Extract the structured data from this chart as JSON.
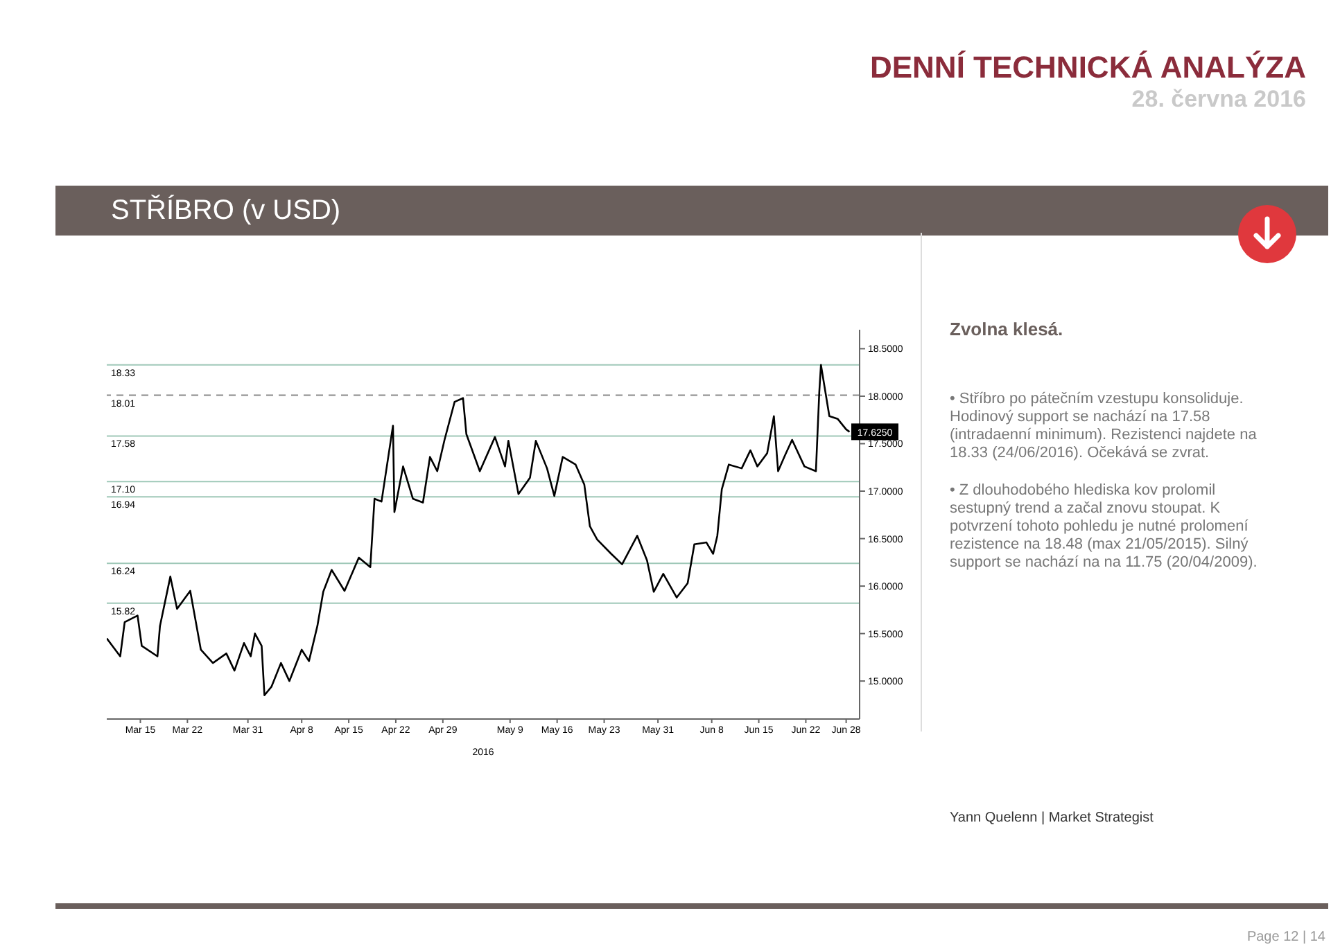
{
  "chart_data": {
    "type": "line",
    "title": "STŘÍBRO (v USD)",
    "subtitle": "Zvolna klesá.",
    "xlabel": "2016",
    "legend": false,
    "grid": false,
    "marker": "none",
    "line_style": "solid",
    "series": [
      {
        "color": "#000000",
        "x": [
          "2016-03-10T00:00",
          "2016-03-12T00:00",
          "2016-03-12T16:00",
          "2016-03-14T14:00",
          "2016-03-15T05:00",
          "2016-03-17T13:00",
          "2016-03-17T22:00",
          "2016-03-19T11:00",
          "2016-03-20T11:00",
          "2016-03-22T10:00",
          "2016-03-24T00:00",
          "2016-03-25T19:00",
          "2016-03-27T19:00",
          "2016-03-29T00:00",
          "2016-03-30T10:00",
          "2016-03-31T10:00",
          "2016-04-01T01:00",
          "2016-04-02T01:00",
          "2016-04-02T11:00",
          "2016-04-03T12:00",
          "2016-04-04T22:00",
          "2016-04-06T04:00",
          "2016-04-08T00:00",
          "2016-04-09T02:00",
          "2016-04-10T08:00",
          "2016-04-11T05:00",
          "2016-04-12T11:00",
          "2016-04-14T09:00",
          "2016-04-16T12:00",
          "2016-04-18T05:00",
          "2016-04-18T20:00",
          "2016-04-19T21:00",
          "2016-04-21T14:00",
          "2016-04-21T19:00",
          "2016-04-23T02:00",
          "2016-04-24T13:00",
          "2016-04-26T01:00",
          "2016-04-27T02:00",
          "2016-04-28T04:00",
          "2016-04-29T06:00",
          "2016-04-30T18:00",
          "2016-05-02T00:00",
          "2016-05-02T12:00",
          "2016-05-04T12:00",
          "2016-05-06T18:00",
          "2016-05-08T06:00",
          "2016-05-08T18:00",
          "2016-05-10T06:00",
          "2016-05-11T23:00",
          "2016-05-12T20:00",
          "2016-05-14T12:00",
          "2016-05-15T14:00",
          "2016-05-16T20:00",
          "2016-05-18T18:00",
          "2016-05-20T01:00",
          "2016-05-20T21:00",
          "2016-05-21T23:00",
          "2016-05-24T01:00",
          "2016-05-25T16:00",
          "2016-05-27T22:00",
          "2016-05-29T09:00",
          "2016-05-30T09:00",
          "2016-05-31T19:00",
          "2016-06-02T19:00",
          "2016-06-04T10:00",
          "2016-06-05T10:00",
          "2016-06-07T05:00",
          "2016-06-08T05:00",
          "2016-06-08T20:00",
          "2016-06-09T12:00",
          "2016-06-10T13:00",
          "2016-06-12T11:00",
          "2016-06-13T18:00",
          "2016-06-14T19:00",
          "2016-06-16T06:00",
          "2016-06-17T06:00",
          "2016-06-17T21:00",
          "2016-06-18T22:00",
          "2016-06-19T23:00",
          "2016-06-21T19:00",
          "2016-06-23T12:00",
          "2016-06-24T00:00",
          "2016-06-24T06:00",
          "2016-06-25T12:00",
          "2016-06-26T18:00",
          "2016-06-28T00:00",
          "2016-06-28T12:00"
        ],
        "values": [
          15.45,
          15.26,
          15.62,
          15.69,
          15.37,
          15.26,
          15.58,
          16.1,
          15.76,
          15.95,
          15.33,
          15.19,
          15.29,
          15.11,
          15.4,
          15.26,
          15.5,
          15.37,
          14.85,
          14.94,
          15.19,
          15.0,
          15.33,
          15.21,
          15.58,
          15.94,
          16.17,
          15.95,
          16.3,
          16.2,
          16.92,
          16.89,
          17.69,
          16.78,
          17.26,
          16.92,
          16.88,
          17.36,
          17.21,
          17.54,
          17.94,
          17.98,
          17.6,
          17.21,
          17.57,
          17.26,
          17.53,
          16.97,
          17.14,
          17.53,
          17.24,
          16.95,
          17.36,
          17.28,
          17.07,
          16.63,
          16.49,
          16.34,
          16.23,
          16.53,
          16.27,
          15.94,
          16.13,
          15.88,
          16.03,
          16.44,
          16.46,
          16.34,
          16.53,
          17.02,
          17.28,
          17.24,
          17.43,
          17.26,
          17.4,
          17.79,
          17.21,
          17.38,
          17.54,
          17.26,
          17.21,
          18.04,
          18.33,
          17.79,
          17.76,
          17.65,
          17.625
        ]
      }
    ],
    "xlim": [
      "2016-03-10",
      "2016-06-30"
    ],
    "xticks": [
      {
        "value": "2016-03-15",
        "label": "Mar 15"
      },
      {
        "value": "2016-03-22",
        "label": "Mar 22"
      },
      {
        "value": "2016-03-31",
        "label": "Mar 31"
      },
      {
        "value": "2016-04-08",
        "label": "Apr 8"
      },
      {
        "value": "2016-04-15",
        "label": "Apr 15"
      },
      {
        "value": "2016-04-22",
        "label": "Apr 22"
      },
      {
        "value": "2016-04-29",
        "label": "Apr 29"
      },
      {
        "value": "2016-05-09",
        "label": "May 9"
      },
      {
        "value": "2016-05-16",
        "label": "May 16"
      },
      {
        "value": "2016-05-23",
        "label": "May 23"
      },
      {
        "value": "2016-05-31",
        "label": "May 31"
      },
      {
        "value": "2016-06-08",
        "label": "Jun 8"
      },
      {
        "value": "2016-06-15",
        "label": "Jun 15"
      },
      {
        "value": "2016-06-22",
        "label": "Jun 22"
      },
      {
        "value": "2016-06-28",
        "label": "Jun 28"
      }
    ],
    "ylim": [
      14.6,
      18.7
    ],
    "yticks": [
      {
        "value": 15,
        "label": "15.0000"
      },
      {
        "value": 15.5,
        "label": "15.5000"
      },
      {
        "value": 16,
        "label": "16.0000"
      },
      {
        "value": 16.5,
        "label": "16.5000"
      },
      {
        "value": 17,
        "label": "17.0000"
      },
      {
        "value": 17.5,
        "label": "17.5000"
      },
      {
        "value": 18,
        "label": "18.0000"
      },
      {
        "value": 18.5,
        "label": "18.5000"
      }
    ],
    "ref_lines": [
      {
        "axis": "y",
        "value": 18.33,
        "label": "18.33",
        "color": "#9fc8b8",
        "line_style": "solid"
      },
      {
        "axis": "y",
        "value": 18.01,
        "label": "18.01",
        "color": "#8a8a8a",
        "line_style": "dashed"
      },
      {
        "axis": "y",
        "value": 17.58,
        "label": "17.58",
        "color": "#9fc8b8",
        "line_style": "solid"
      },
      {
        "axis": "y",
        "value": 17.1,
        "label": "17.10",
        "color": "#9fc8b8",
        "line_style": "solid"
      },
      {
        "axis": "y",
        "value": 16.94,
        "label": "16.94",
        "color": "#9fc8b8",
        "line_style": "solid"
      },
      {
        "axis": "y",
        "value": 16.24,
        "label": "16.24",
        "color": "#9fc8b8",
        "line_style": "solid"
      },
      {
        "axis": "y",
        "value": 15.82,
        "label": "15.82",
        "color": "#9fc8b8",
        "line_style": "solid"
      }
    ],
    "annotations": [
      "DENNÍ TECHNICKÁ ANALÝZA",
      "28. června 2016",
      "• Stříbro po pátečním vzestupu konsoliduje. Hodinový support se nachází na 17.58 (intradaenní minimum). Rezistenci najdete na 18.33 (24/06/2016). Očekává se zvrat.",
      "• Z dlouhodobého hlediska kov prolomil sestupný trend a začal znovu stoupat. K potvrzení tohoto pohledu je nutné prolomení rezistence na 18.48 (max 21/05/2015). Silný support se nachází na na 11.75 (20/04/2009).",
      "Yann Quelenn | Market Strategist",
      "Page 12 | 14",
      {
        "text": "17.6250",
        "x": "2016-06-28T12:00",
        "y": 17.625
      }
    ]
  }
}
